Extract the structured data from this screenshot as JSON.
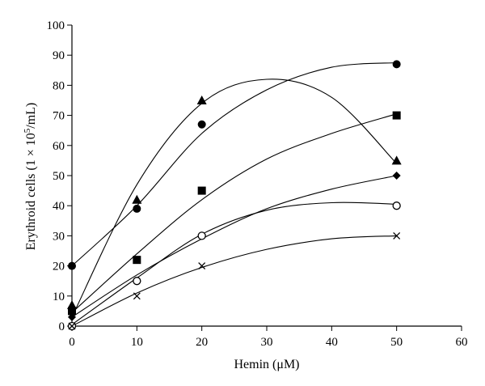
{
  "chart_data": {
    "type": "scatter",
    "xlabel": "Hemin (μM)",
    "ylabel": "Erythroid cells (1 × 10^5/mL)",
    "ylabel_parts": {
      "pre": "Erythroid cells (1 × 10",
      "sup": "5",
      "post": "/mL)"
    },
    "xlim": [
      0,
      60
    ],
    "ylim": [
      0,
      100
    ],
    "xticks": [
      0,
      10,
      20,
      30,
      40,
      50,
      60
    ],
    "yticks": [
      0,
      10,
      20,
      30,
      40,
      50,
      60,
      70,
      80,
      90,
      100
    ],
    "grid": false,
    "legend": "none",
    "series": [
      {
        "marker": "circle",
        "x": [
          0,
          10,
          20,
          50
        ],
        "y": [
          20,
          39,
          67,
          87
        ],
        "trend": [
          [
            0,
            20
          ],
          [
            10,
            40
          ],
          [
            20,
            64
          ],
          [
            30,
            78.5
          ],
          [
            40,
            86
          ],
          [
            50,
            87.5
          ]
        ]
      },
      {
        "marker": "triangle",
        "x": [
          0,
          10,
          20,
          50
        ],
        "y": [
          7,
          42,
          75,
          55
        ],
        "trend": [
          [
            0,
            3
          ],
          [
            10,
            47
          ],
          [
            20,
            74
          ],
          [
            30,
            82
          ],
          [
            40,
            76
          ],
          [
            50,
            54
          ]
        ]
      },
      {
        "marker": "square",
        "x": [
          0,
          10,
          20,
          50
        ],
        "y": [
          5,
          22,
          45,
          70
        ],
        "trend": [
          [
            0,
            4.5
          ],
          [
            10,
            24
          ],
          [
            20,
            42
          ],
          [
            30,
            55.5
          ],
          [
            40,
            64
          ],
          [
            50,
            70.5
          ]
        ]
      },
      {
        "marker": "diamond",
        "x": [
          0,
          10,
          20,
          50
        ],
        "y": [
          3,
          15,
          30,
          50
        ],
        "trend": [
          [
            0,
            3
          ],
          [
            10,
            17
          ],
          [
            20,
            29
          ],
          [
            30,
            39
          ],
          [
            40,
            45.5
          ],
          [
            50,
            50
          ]
        ]
      },
      {
        "marker": "open-circle",
        "x": [
          0,
          10,
          20,
          50
        ],
        "y": [
          0,
          15,
          30,
          40
        ],
        "trend": [
          [
            0,
            0.5
          ],
          [
            10,
            16
          ],
          [
            20,
            30.5
          ],
          [
            30,
            38.5
          ],
          [
            40,
            41
          ],
          [
            50,
            40.5
          ]
        ]
      },
      {
        "marker": "cross",
        "x": [
          0,
          10,
          20,
          50
        ],
        "y": [
          0,
          10,
          20,
          30
        ],
        "trend": [
          [
            0,
            0
          ],
          [
            10,
            11
          ],
          [
            20,
            19.5
          ],
          [
            30,
            25.5
          ],
          [
            40,
            29
          ],
          [
            50,
            30
          ]
        ]
      }
    ]
  }
}
